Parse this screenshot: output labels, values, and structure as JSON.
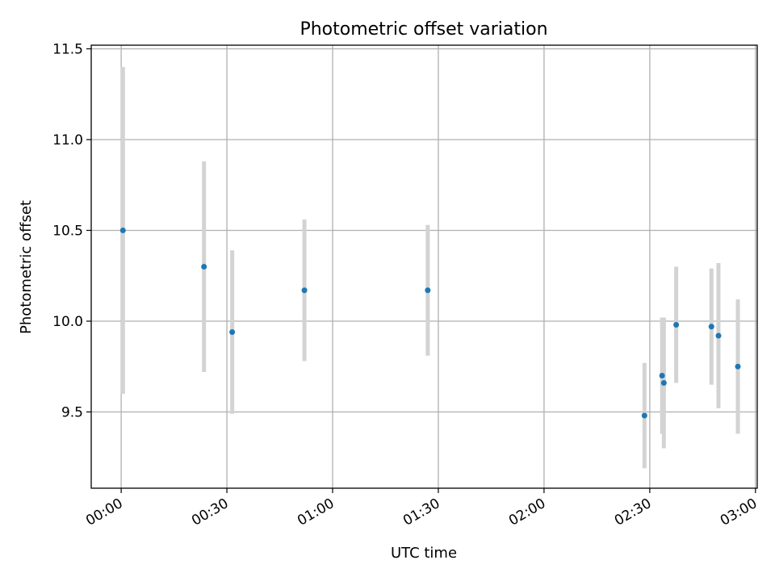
{
  "chart_data": {
    "type": "scatter",
    "title": "Photometric offset variation",
    "xlabel": "UTC time",
    "ylabel": "Photometric offset",
    "xlim": [
      "-00:08.5",
      "03:00.5"
    ],
    "ylim": [
      9.08,
      11.52
    ],
    "x_ticks": [
      "00:00",
      "00:30",
      "01:00",
      "01:30",
      "02:00",
      "02:30",
      "03:00"
    ],
    "y_ticks": [
      9.5,
      10.0,
      10.5,
      11.0,
      11.5
    ],
    "y_tick_labels": [
      "9.5",
      "10.0",
      "10.5",
      "11.0",
      "11.5"
    ],
    "grid": true,
    "point_color": "#1f77b4",
    "errorbar_color": "#d3d3d3",
    "points": [
      {
        "x": "00:00.5",
        "y": 10.5,
        "ylow": 9.6,
        "yhigh": 11.4
      },
      {
        "x": "00:23.5",
        "y": 10.3,
        "ylow": 9.72,
        "yhigh": 10.88
      },
      {
        "x": "00:31.5",
        "y": 9.94,
        "ylow": 9.49,
        "yhigh": 10.39
      },
      {
        "x": "00:52",
        "y": 10.17,
        "ylow": 9.78,
        "yhigh": 10.56
      },
      {
        "x": "01:27",
        "y": 10.17,
        "ylow": 9.81,
        "yhigh": 10.53
      },
      {
        "x": "02:28.5",
        "y": 9.48,
        "ylow": 9.19,
        "yhigh": 9.77
      },
      {
        "x": "02:33.5",
        "y": 9.7,
        "ylow": 9.38,
        "yhigh": 10.02
      },
      {
        "x": "02:34",
        "y": 9.66,
        "ylow": 9.3,
        "yhigh": 10.02
      },
      {
        "x": "02:37.5",
        "y": 9.98,
        "ylow": 9.66,
        "yhigh": 10.3
      },
      {
        "x": "02:47.5",
        "y": 9.97,
        "ylow": 9.65,
        "yhigh": 10.29
      },
      {
        "x": "02:49.5",
        "y": 9.92,
        "ylow": 9.52,
        "yhigh": 10.32
      },
      {
        "x": "02:55",
        "y": 9.75,
        "ylow": 9.38,
        "yhigh": 10.12
      }
    ]
  }
}
